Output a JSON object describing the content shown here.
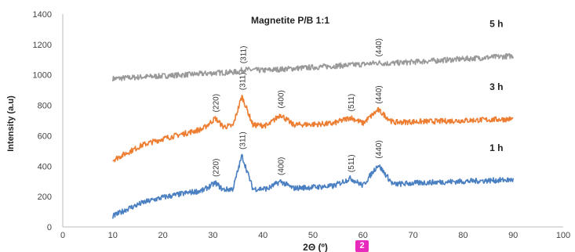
{
  "chart_data": {
    "type": "line",
    "title": "Magnetite P/B 1:1",
    "xlabel": "2Θ (º)",
    "ylabel": "Intensity (a.u)",
    "xlim": [
      0,
      100
    ],
    "ylim": [
      0,
      1400
    ],
    "xticks": [
      0,
      10,
      20,
      30,
      40,
      50,
      60,
      70,
      80,
      90,
      100
    ],
    "yticks": [
      0,
      200,
      400,
      600,
      800,
      1000,
      1200,
      1400
    ],
    "grid": false,
    "series": [
      {
        "name": "5 h",
        "color": "#999999",
        "x": [
          10,
          15,
          20,
          25,
          30,
          35,
          36,
          40,
          45,
          50,
          55,
          60,
          63,
          65,
          70,
          75,
          80,
          85,
          90
        ],
        "y": [
          975,
          985,
          993,
          1002,
          1012,
          1020,
          1035,
          1030,
          1040,
          1050,
          1060,
          1070,
          1080,
          1075,
          1085,
          1095,
          1105,
          1115,
          1125
        ],
        "peaks": [
          {
            "label": "(311)",
            "x": 36
          },
          {
            "label": "(440)",
            "x": 63
          }
        ]
      },
      {
        "name": "3 h",
        "color": "#ed7d31",
        "x": [
          10,
          13,
          16,
          20,
          25,
          28,
          30.5,
          32,
          34,
          35.8,
          38,
          41,
          43.5,
          46,
          50,
          54,
          57.5,
          60,
          63,
          66,
          70,
          75,
          80,
          85,
          90
        ],
        "y": [
          440,
          490,
          540,
          580,
          620,
          645,
          715,
          660,
          665,
          860,
          670,
          668,
          740,
          672,
          675,
          680,
          720,
          682,
          770,
          688,
          692,
          695,
          700,
          705,
          710
        ],
        "peaks": [
          {
            "label": "(220)",
            "x": 30.5
          },
          {
            "label": "(311)",
            "x": 35.8
          },
          {
            "label": "(400)",
            "x": 43.5
          },
          {
            "label": "(511)",
            "x": 57.5
          },
          {
            "label": "(440)",
            "x": 63
          }
        ]
      },
      {
        "name": "1 h",
        "color": "#4a7fc1",
        "x": [
          10,
          13,
          16,
          20,
          25,
          28,
          30.5,
          32,
          34,
          35.8,
          38,
          41,
          43.5,
          46,
          50,
          54,
          57.5,
          60,
          63,
          66,
          70,
          75,
          80,
          85,
          90
        ],
        "y": [
          70,
          120,
          160,
          195,
          225,
          240,
          290,
          245,
          250,
          470,
          250,
          252,
          300,
          255,
          262,
          268,
          320,
          272,
          410,
          280,
          288,
          295,
          300,
          305,
          310
        ],
        "peaks": [
          {
            "label": "(220)",
            "x": 30.5
          },
          {
            "label": "(311)",
            "x": 35.8
          },
          {
            "label": "(400)",
            "x": 43.5
          },
          {
            "label": "(511)",
            "x": 57.5
          },
          {
            "label": "(440)",
            "x": 63
          }
        ]
      }
    ]
  },
  "badge": {
    "text": "2"
  }
}
